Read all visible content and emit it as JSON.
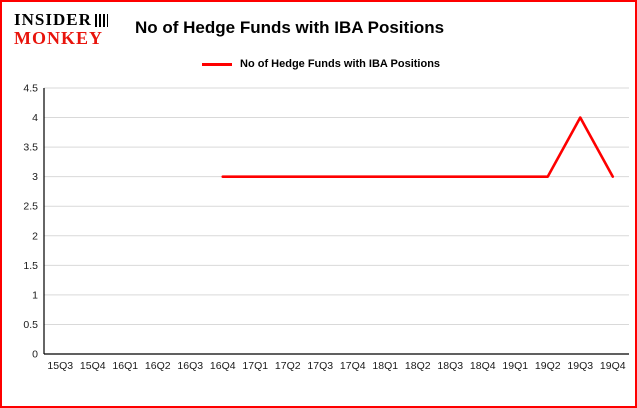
{
  "logo": {
    "line1": "INSIDER",
    "line2": "MONKEY"
  },
  "header": {
    "title": "No of Hedge Funds with IBA Positions"
  },
  "legend": {
    "label": "No of Hedge Funds with IBA Positions"
  },
  "chart_data": {
    "type": "line",
    "title": "No of Hedge Funds with IBA Positions",
    "categories": [
      "15Q3",
      "15Q4",
      "16Q1",
      "16Q2",
      "16Q3",
      "16Q4",
      "17Q1",
      "17Q2",
      "17Q3",
      "17Q4",
      "18Q1",
      "18Q2",
      "18Q3",
      "18Q4",
      "19Q1",
      "19Q2",
      "19Q3",
      "19Q4"
    ],
    "series": [
      {
        "name": "No of Hedge Funds with IBA Positions",
        "color": "#fe0000",
        "values": [
          null,
          null,
          null,
          null,
          null,
          3,
          3,
          3,
          3,
          3,
          3,
          3,
          3,
          3,
          3,
          3,
          4,
          3
        ]
      }
    ],
    "xlabel": "",
    "ylabel": "",
    "ylim": [
      0,
      4.5
    ],
    "yticks": [
      0,
      0.5,
      1,
      1.5,
      2,
      2.5,
      3,
      3.5,
      4,
      4.5
    ],
    "grid": true,
    "legend_position": "top",
    "colors": {
      "line": "#fe0000",
      "grid": "#d9d9d9",
      "axis": "#000000",
      "frame_border": "#fe0000",
      "background": "#ffffff"
    }
  }
}
